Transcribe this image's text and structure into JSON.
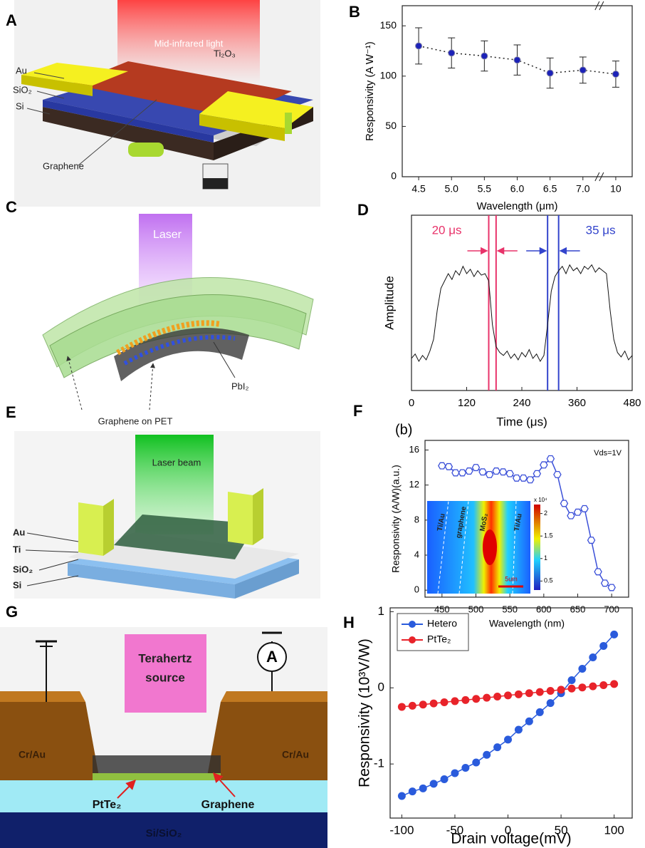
{
  "panel_labels": [
    "A",
    "B",
    "C",
    "D",
    "E",
    "F",
    "G",
    "H"
  ],
  "diagrams": {
    "A": {
      "labels": [
        "Mid-infrared light",
        "Ti₂O₃",
        "Au",
        "SiO₂",
        "Si",
        "Graphene"
      ]
    },
    "C": {
      "labels": [
        "Laser",
        "Graphene on PET",
        "PbI₂"
      ]
    },
    "E": {
      "labels": [
        "Laser beam",
        "Au",
        "Ti",
        "SiO₂",
        "Si"
      ]
    },
    "G": {
      "labels": [
        "Terahertz",
        "source",
        "A",
        "Cr/Au",
        "Cr/Au",
        "PtTe₂",
        "Graphene",
        "Si/SiO₂"
      ]
    }
  },
  "chart_data": [
    {
      "type": "line",
      "categories": [
        "4.5",
        "5.0",
        "5.5",
        "6.0",
        "6.5",
        "7.0",
        "10"
      ],
      "values": [
        130,
        123,
        120,
        116,
        103,
        106,
        102
      ],
      "errors": [
        18,
        15,
        15,
        15,
        15,
        13,
        13
      ],
      "color": "#1c22b8",
      "line_style": "dotted",
      "marker": "circle",
      "ylim": [
        0,
        170
      ],
      "yticks": [
        0,
        50,
        100,
        150
      ],
      "xlabel": "Wavelength (μm)",
      "ylabel": "Responsivity (A W⁻¹)"
    },
    {
      "type": "line",
      "x": [
        0,
        8,
        16,
        24,
        32,
        40,
        48,
        56,
        64,
        72,
        80,
        88,
        96,
        104,
        112,
        120,
        128,
        136,
        144,
        152,
        160,
        168,
        176,
        184,
        192,
        200,
        208,
        216,
        224,
        232,
        240,
        248,
        256,
        264,
        272,
        280,
        288,
        296,
        304,
        312,
        320,
        328,
        336,
        344,
        352,
        360,
        368,
        376,
        384,
        392,
        400,
        408,
        416,
        424,
        432,
        440,
        448,
        456,
        464,
        472,
        480
      ],
      "values": [
        0.22,
        0.25,
        0.2,
        0.24,
        0.21,
        0.27,
        0.35,
        0.55,
        0.7,
        0.75,
        0.8,
        0.76,
        0.82,
        0.79,
        0.85,
        0.8,
        0.83,
        0.78,
        0.82,
        0.79,
        0.8,
        0.75,
        0.45,
        0.3,
        0.26,
        0.24,
        0.27,
        0.22,
        0.25,
        0.21,
        0.26,
        0.23,
        0.28,
        0.22,
        0.25,
        0.2,
        0.24,
        0.45,
        0.68,
        0.78,
        0.82,
        0.85,
        0.8,
        0.86,
        0.82,
        0.84,
        0.8,
        0.85,
        0.83,
        0.86,
        0.81,
        0.84,
        0.82,
        0.8,
        0.55,
        0.35,
        0.26,
        0.23,
        0.27,
        0.21,
        0.24
      ],
      "color": "#111111",
      "marker": "none",
      "xlim": [
        0,
        480
      ],
      "xticks": [
        0,
        120,
        240,
        360,
        480
      ],
      "ylim": [
        0,
        1.2
      ],
      "xlabel": "Time (μs)",
      "ylabel": "Amplitude",
      "vlines": [
        {
          "x": 168,
          "color": "#e8336a"
        },
        {
          "x": 184,
          "color": "#e8336a"
        },
        {
          "x": 296,
          "color": "#3344cc"
        },
        {
          "x": 320,
          "color": "#3344cc"
        }
      ],
      "annotations": [
        {
          "text": "20 μs",
          "color": "#e8336a"
        },
        {
          "text": "35 μs",
          "color": "#3344cc"
        }
      ]
    },
    {
      "type": "line",
      "subtitle": "(b)",
      "annotation": "Vds=1V",
      "x": [
        450,
        460,
        470,
        480,
        490,
        500,
        510,
        520,
        530,
        540,
        550,
        560,
        570,
        580,
        590,
        600,
        610,
        620,
        630,
        640,
        650,
        660,
        670,
        680,
        690,
        700
      ],
      "values": [
        14.2,
        14.1,
        13.4,
        13.4,
        13.6,
        14,
        13.5,
        13.2,
        13.6,
        13.5,
        13.3,
        12.8,
        12.8,
        12.6,
        13.3,
        14.3,
        15,
        13.2,
        9.9,
        8.5,
        8.9,
        9.3,
        5.7,
        2.1,
        0.8,
        0.3
      ],
      "color": "#3a4fd8",
      "marker": "hexagon",
      "xlim": [
        425,
        725
      ],
      "xticks": [
        450,
        500,
        550,
        600,
        650,
        700
      ],
      "ylim": [
        -0.8,
        17.1
      ],
      "yticks": [
        0,
        4,
        8,
        12,
        16
      ],
      "xlabel": "Wavelength (nm)",
      "ylabel": "Responsivity (A/W)(a.u.)",
      "inset": {
        "labels": [
          "Ti/Au",
          "graphene",
          "MoS₂",
          "Ti/Au"
        ],
        "scale_bar": "5um",
        "colorbar_unit": "x 10⁴",
        "colorbar_lim": [
          0.3,
          2.2
        ],
        "colorbar_ticks": [
          0.5,
          1,
          1.5,
          2
        ]
      }
    },
    {
      "type": "line",
      "x": [
        -100,
        -90,
        -80,
        -70,
        -60,
        -50,
        -40,
        -30,
        -20,
        -10,
        0,
        10,
        20,
        30,
        40,
        50,
        60,
        70,
        80,
        90,
        100
      ],
      "series": [
        {
          "name": "Hetero",
          "color": "#2a5bdc",
          "values": [
            -1.42,
            -1.36,
            -1.32,
            -1.26,
            -1.2,
            -1.12,
            -1.05,
            -0.98,
            -0.88,
            -0.78,
            -0.68,
            -0.55,
            -0.44,
            -0.32,
            -0.2,
            -0.07,
            0.1,
            0.25,
            0.4,
            0.55,
            0.7
          ]
        },
        {
          "name": "PtTe₂",
          "color": "#e8232a",
          "values": [
            -0.25,
            -0.235,
            -0.22,
            -0.205,
            -0.19,
            -0.175,
            -0.16,
            -0.145,
            -0.13,
            -0.115,
            -0.1,
            -0.085,
            -0.07,
            -0.055,
            -0.04,
            -0.025,
            -0.01,
            0.005,
            0.02,
            0.035,
            0.05
          ]
        }
      ],
      "marker": "circle",
      "legend": "upper left",
      "xlim": [
        -111,
        117
      ],
      "xticks": [
        -100,
        -50,
        0,
        50,
        100
      ],
      "ylim": [
        -1.71,
        1.05
      ],
      "yticks": [
        -1,
        0,
        1
      ],
      "xlabel": "Drain voltage(mV)",
      "ylabel": "Responsivity (10³V/W)"
    }
  ]
}
